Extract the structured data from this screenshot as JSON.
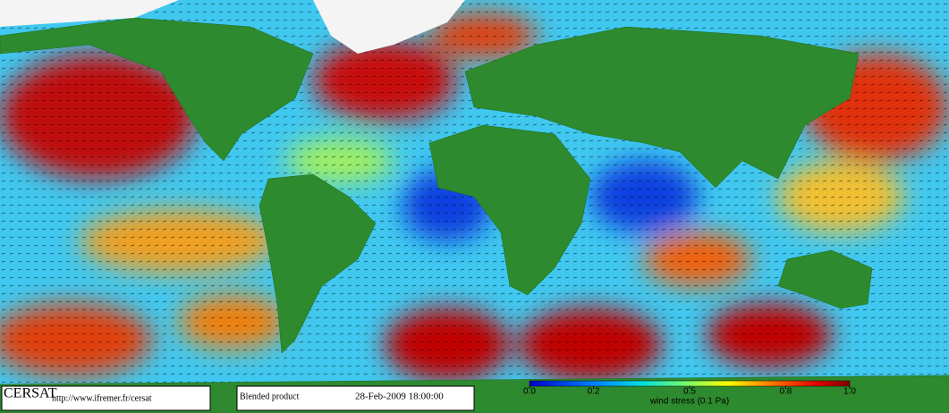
{
  "logo": "CERSAT",
  "url": "http://www.ifremer.fr/cersat",
  "product": "Blended product",
  "date": "28-Feb-2009 18:00:00",
  "colorbar": {
    "label": "wind stress (0.1 Pa)",
    "lim": [
      0,
      1
    ],
    "ticks": [
      {
        "value": 0,
        "label": "0.0"
      },
      0.2,
      0.5,
      0.8,
      {
        "value": 1,
        "label": "1.0"
      }
    ]
  }
}
